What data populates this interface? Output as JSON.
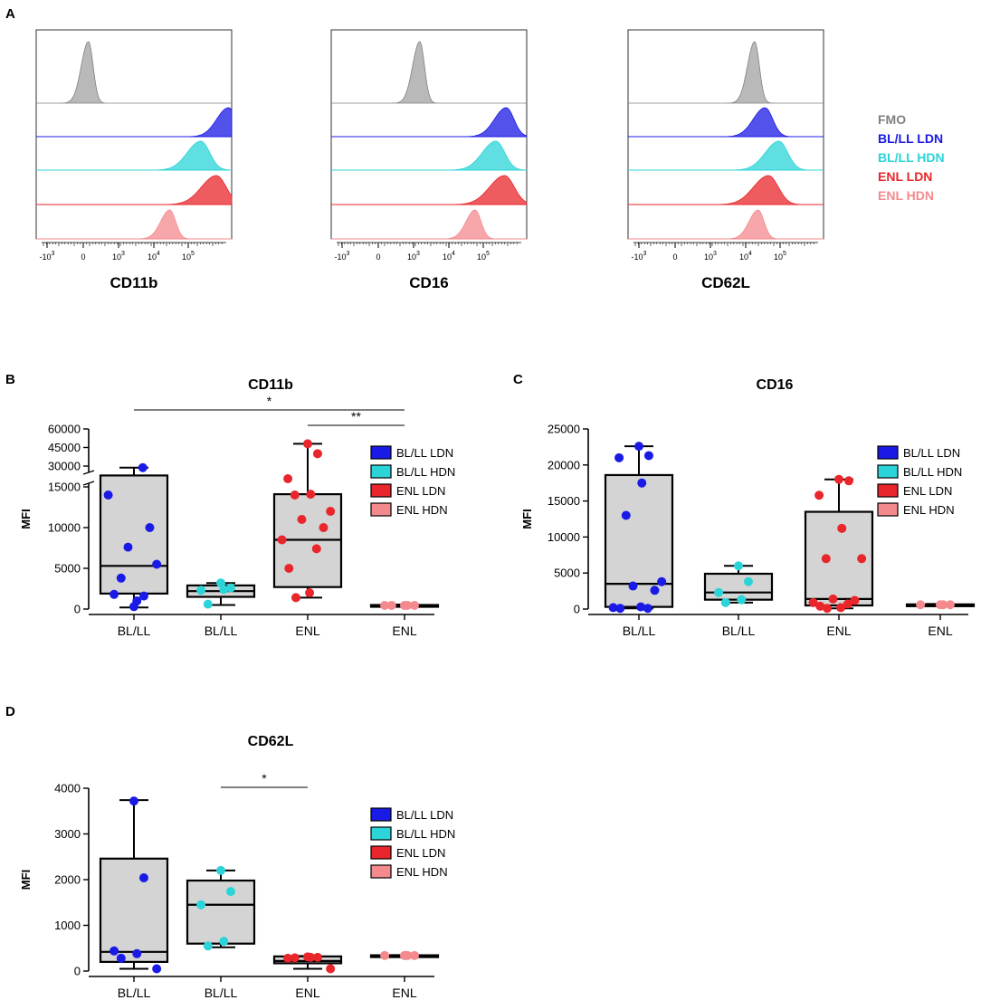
{
  "figure": {
    "colors": {
      "FMO": "#808080",
      "BL/LL LDN": "#1a1ae6",
      "BL/LL HDN": "#2bd4d8",
      "ENL LDN": "#e8262b",
      "ENL HDN": "#f48a8e",
      "box_fill": "#d4d4d4"
    }
  },
  "chart_data": [
    {
      "panel": "A",
      "type": "histogram",
      "title": "CD11b",
      "xaxis_ticks": [
        "-10^3",
        "0",
        "10^3",
        "10^4",
        "10^5"
      ],
      "tracks": [
        {
          "name": "FMO",
          "peak_log_position": 0.15
        },
        {
          "name": "BL/LL LDN",
          "peak_log_position": 4.2
        },
        {
          "name": "BL/LL HDN",
          "peak_log_position": 3.4
        },
        {
          "name": "ENL LDN",
          "peak_log_position": 3.85
        },
        {
          "name": "ENL HDN",
          "peak_log_position": 2.5
        }
      ]
    },
    {
      "panel": "A",
      "type": "histogram",
      "title": "CD16",
      "xaxis_ticks": [
        "-10^3",
        "0",
        "10^3",
        "10^4",
        "10^5"
      ],
      "tracks": [
        {
          "name": "FMO",
          "peak_log_position": 1.2
        },
        {
          "name": "BL/LL LDN",
          "peak_log_position": 3.7
        },
        {
          "name": "BL/LL HDN",
          "peak_log_position": 3.4
        },
        {
          "name": "ENL LDN",
          "peak_log_position": 3.65
        },
        {
          "name": "ENL HDN",
          "peak_log_position": 2.8
        }
      ]
    },
    {
      "panel": "A",
      "type": "histogram",
      "title": "CD62L",
      "xaxis_ticks": [
        "-10^3",
        "0",
        "10^3",
        "10^4",
        "10^5"
      ],
      "tracks": [
        {
          "name": "FMO",
          "peak_log_position": 2.3
        },
        {
          "name": "BL/LL LDN",
          "peak_log_position": 2.6
        },
        {
          "name": "BL/LL HDN",
          "peak_log_position": 3.0
        },
        {
          "name": "ENL LDN",
          "peak_log_position": 2.7
        },
        {
          "name": "ENL HDN",
          "peak_log_position": 2.4
        }
      ]
    },
    {
      "panel": "B",
      "type": "box",
      "title": "CD11b",
      "ylabel": "MFI",
      "ylim": [
        0,
        60000
      ],
      "axis_break": [
        17000,
        28000
      ],
      "lower_ticks": [
        "0",
        "5000",
        "10000",
        "15000"
      ],
      "upper_ticks": [
        "30000",
        "45000",
        "60000"
      ],
      "categories": [
        "BL/LL",
        "BL/LL",
        "ENL",
        "ENL"
      ],
      "series": [
        {
          "name": "BL/LL LDN",
          "min": 200,
          "q1": 1900,
          "median": 5300,
          "q3": 16400,
          "max": 28700,
          "points": [
            300,
            1600,
            1800,
            1000,
            3800,
            5500,
            7600,
            10000,
            14000,
            28700
          ]
        },
        {
          "name": "BL/LL HDN",
          "min": 500,
          "q1": 1500,
          "median": 2200,
          "q3": 2900,
          "max": 3200,
          "points": [
            3200,
            2600,
            2300,
            2400,
            600
          ]
        },
        {
          "name": "ENL LDN",
          "min": 1400,
          "q1": 2700,
          "median": 8500,
          "q3": 14100,
          "max": 48000,
          "points": [
            48000,
            40000,
            16000,
            14100,
            14000,
            12000,
            11000,
            10000,
            8500,
            7400,
            5000,
            2000,
            1400
          ]
        },
        {
          "name": "ENL HDN",
          "min": 300,
          "q1": 400,
          "median": 450,
          "q3": 500,
          "max": 550,
          "points": [
            450,
            450,
            450,
            450,
            450
          ]
        }
      ],
      "significance": [
        {
          "from": 0,
          "to": 3,
          "label": "*"
        },
        {
          "from": 2,
          "to": 3,
          "label": "**"
        }
      ],
      "legend": [
        "BL/LL LDN",
        "BL/LL HDN",
        "ENL LDN",
        "ENL HDN"
      ]
    },
    {
      "panel": "C",
      "type": "box",
      "title": "CD16",
      "ylabel": "MFI",
      "ylim": [
        0,
        25000
      ],
      "yticks": [
        "0",
        "5000",
        "10000",
        "15000",
        "20000",
        "25000"
      ],
      "categories": [
        "BL/LL",
        "BL/LL",
        "ENL",
        "ENL"
      ],
      "series": [
        {
          "name": "BL/LL LDN",
          "min": 100,
          "q1": 300,
          "median": 3500,
          "q3": 18600,
          "max": 22600,
          "points": [
            22600,
            21300,
            21000,
            17500,
            13000,
            3800,
            3200,
            2600,
            200,
            100,
            100,
            300
          ]
        },
        {
          "name": "BL/LL HDN",
          "min": 900,
          "q1": 1300,
          "median": 2300,
          "q3": 4900,
          "max": 6000,
          "points": [
            6000,
            3800,
            2300,
            1300,
            900
          ]
        },
        {
          "name": "ENL LDN",
          "min": 100,
          "q1": 500,
          "median": 1400,
          "q3": 13500,
          "max": 18000,
          "points": [
            18000,
            17800,
            15800,
            11200,
            7000,
            7000,
            1400,
            1200,
            900,
            700,
            400,
            200,
            100
          ]
        },
        {
          "name": "ENL HDN",
          "min": 500,
          "q1": 550,
          "median": 600,
          "q3": 650,
          "max": 700,
          "points": [
            600,
            600,
            600,
            600
          ]
        }
      ],
      "legend": [
        "BL/LL LDN",
        "BL/LL HDN",
        "ENL LDN",
        "ENL HDN"
      ]
    },
    {
      "panel": "D",
      "type": "box",
      "title": "CD62L",
      "ylabel": "MFI",
      "ylim": [
        0,
        4000
      ],
      "yticks": [
        "0",
        "1000",
        "2000",
        "3000",
        "4000"
      ],
      "categories": [
        "BL/LL",
        "BL/LL",
        "ENL",
        "ENL"
      ],
      "series": [
        {
          "name": "BL/LL LDN",
          "min": 50,
          "q1": 200,
          "median": 420,
          "q3": 2460,
          "max": 3740,
          "points": [
            3720,
            2040,
            440,
            380,
            280,
            50
          ]
        },
        {
          "name": "BL/LL HDN",
          "min": 520,
          "q1": 600,
          "median": 1450,
          "q3": 1980,
          "max": 2200,
          "points": [
            2200,
            1740,
            1450,
            650,
            550
          ]
        },
        {
          "name": "ENL LDN",
          "min": 50,
          "q1": 170,
          "median": 220,
          "q3": 320,
          "max": 330,
          "points": [
            310,
            300,
            280,
            300,
            290,
            50
          ]
        },
        {
          "name": "ENL HDN",
          "min": 330,
          "q1": 335,
          "median": 340,
          "q3": 345,
          "max": 350,
          "points": [
            340,
            340,
            340,
            340
          ]
        }
      ],
      "significance": [
        {
          "from": 1,
          "to": 2,
          "label": "*"
        }
      ],
      "legend": [
        "BL/LL LDN",
        "BL/LL HDN",
        "ENL LDN",
        "ENL HDN"
      ]
    }
  ],
  "labels": {
    "panel_letters": [
      "A",
      "B",
      "C",
      "D"
    ],
    "legend_A": [
      "FMO",
      "BL/LL LDN",
      "BL/LL HDN",
      "ENL LDN",
      "ENL HDN"
    ]
  }
}
